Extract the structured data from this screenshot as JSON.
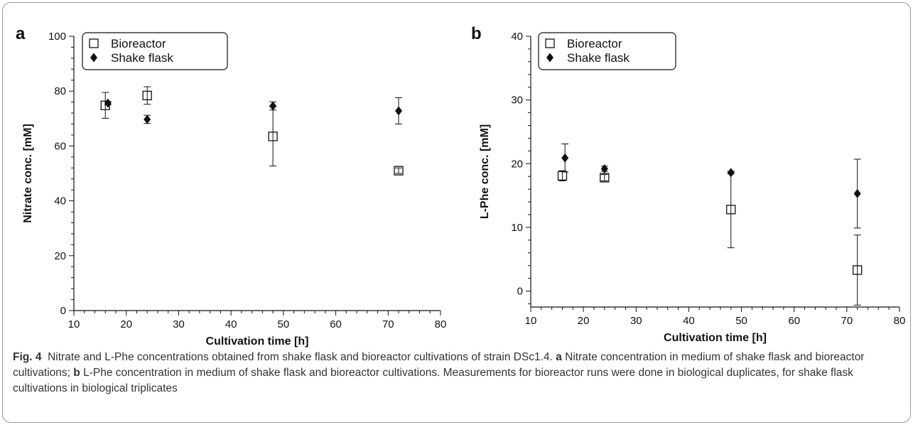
{
  "chart_data": [
    {
      "type": "scatter",
      "panel_label": "a",
      "xlabel": "Cultivation time [h]",
      "ylabel": "Nitrate conc. [mM]",
      "xlim": [
        10,
        80
      ],
      "ylim": [
        0,
        100
      ],
      "xticks": [
        10,
        20,
        30,
        40,
        50,
        60,
        70,
        80
      ],
      "yticks": [
        0,
        20,
        40,
        60,
        80,
        100
      ],
      "grid": false,
      "legend_position": "top-left",
      "series": [
        {
          "name": "Bioreactor",
          "marker": "open-square",
          "points": [
            {
              "x": 16,
              "y": 74.8,
              "err": 4.7
            },
            {
              "x": 24,
              "y": 78.4,
              "err": 3.2
            },
            {
              "x": 48,
              "y": 63.5,
              "err": 10.8
            },
            {
              "x": 72,
              "y": 51.0,
              "err": 1.0
            }
          ]
        },
        {
          "name": "Shake flask",
          "marker": "filled-diamond",
          "points": [
            {
              "x": 16.5,
              "y": 75.6,
              "err": 0.6
            },
            {
              "x": 24,
              "y": 69.7,
              "err": 1.5
            },
            {
              "x": 48,
              "y": 74.6,
              "err": 1.5
            },
            {
              "x": 72,
              "y": 72.8,
              "err": 4.8
            }
          ]
        }
      ]
    },
    {
      "type": "scatter",
      "panel_label": "b",
      "xlabel": "Cultivation time [h]",
      "ylabel": "L-Phe conc. [mM]",
      "xlim": [
        10,
        80
      ],
      "ylim": [
        -2.5,
        40
      ],
      "xticks": [
        10,
        20,
        30,
        40,
        50,
        60,
        70,
        80
      ],
      "yticks": [
        0,
        10,
        20,
        30,
        40
      ],
      "grid": false,
      "legend_position": "top-left",
      "series": [
        {
          "name": "Bioreactor",
          "marker": "open-square",
          "points": [
            {
              "x": 16,
              "y": 18.1,
              "err": 0.8
            },
            {
              "x": 24,
              "y": 17.8,
              "err": 0.5
            },
            {
              "x": 48,
              "y": 12.8,
              "err": 6.0
            },
            {
              "x": 72,
              "y": 3.3,
              "err": 5.5
            }
          ]
        },
        {
          "name": "Shake flask",
          "marker": "filled-diamond",
          "points": [
            {
              "x": 16.5,
              "y": 20.9,
              "err": 2.2
            },
            {
              "x": 24,
              "y": 19.2,
              "err": 0.4
            },
            {
              "x": 48,
              "y": 18.6,
              "err": 0.2
            },
            {
              "x": 72,
              "y": 15.3,
              "err": 5.4
            }
          ]
        }
      ]
    }
  ],
  "caption": {
    "label": "Fig. 4",
    "title": "Nitrate and L-Phe concentrations obtained from shake flask and bioreactor cultivations of strain DSc1.4.",
    "a_label": "a",
    "a_text": "Nitrate concentration in medium of shake flask and bioreactor cultivations;",
    "b_label": "b",
    "b_text": "L-Phe concentration in medium of shake flask and bioreactor cultivations. Measurements for bioreactor runs were done in biological duplicates, for shake flask cultivations in biological triplicates"
  }
}
